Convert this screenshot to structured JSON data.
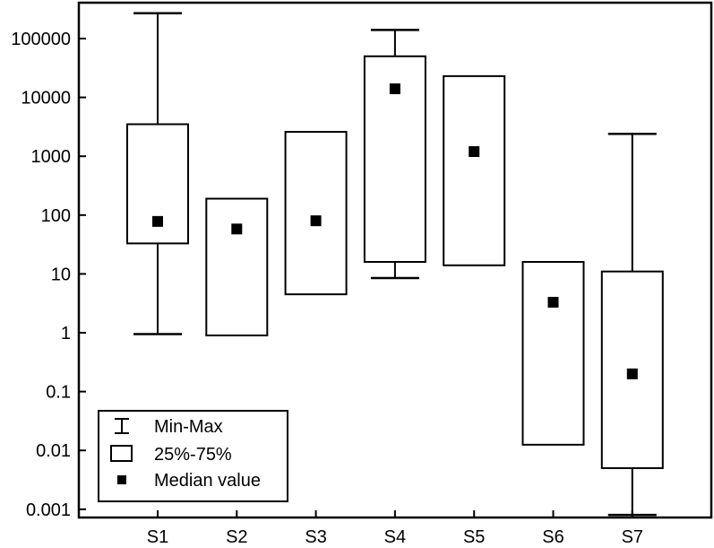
{
  "chart_data": {
    "type": "box",
    "title": "",
    "xlabel": "",
    "ylabel": "",
    "yscale": "log",
    "ylim": [
      0.0007,
      200000
    ],
    "yticks": [
      {
        "value": 100000,
        "label": "100000"
      },
      {
        "value": 10000,
        "label": "10000"
      },
      {
        "value": 1000,
        "label": "1000"
      },
      {
        "value": 100,
        "label": "100"
      },
      {
        "value": 10,
        "label": "10"
      },
      {
        "value": 1,
        "label": "1"
      },
      {
        "value": 0.1,
        "label": "0.1"
      },
      {
        "value": 0.01,
        "label": "0.01"
      },
      {
        "value": 0.001,
        "label": "0.001"
      }
    ],
    "categories": [
      "S1",
      "S2",
      "S3",
      "S4",
      "S5",
      "S6",
      "S7"
    ],
    "series": [
      {
        "category": "S1",
        "min": 0.95,
        "q1": 33,
        "median": 78,
        "q3": 3500,
        "max": 270000
      },
      {
        "category": "S2",
        "min": 0.9,
        "q1": 0.9,
        "median": 58,
        "q3": 190,
        "max": 190
      },
      {
        "category": "S3",
        "min": 4.5,
        "q1": 4.5,
        "median": 80,
        "q3": 2600,
        "max": 2600
      },
      {
        "category": "S4",
        "min": 8.5,
        "q1": 16,
        "median": 14000,
        "q3": 50000,
        "max": 140000
      },
      {
        "category": "S5",
        "min": 14,
        "q1": 14,
        "median": 1200,
        "q3": 23000,
        "max": 23000
      },
      {
        "category": "S6",
        "min": 0.0125,
        "q1": 0.0125,
        "median": 3.3,
        "q3": 16,
        "max": 16
      },
      {
        "category": "S7",
        "min": 0.0008,
        "q1": 0.005,
        "median": 0.2,
        "q3": 11,
        "max": 2400
      }
    ],
    "legend": {
      "position": "bottom-left",
      "entries": [
        {
          "symbol": "whisker",
          "label": "Min-Max"
        },
        {
          "symbol": "box",
          "label": "25%-75%"
        },
        {
          "symbol": "square",
          "label": "Median value"
        }
      ]
    },
    "grid": false,
    "colors": {
      "stroke": "#000000",
      "fill": "#ffffff",
      "median": "#000000"
    }
  }
}
